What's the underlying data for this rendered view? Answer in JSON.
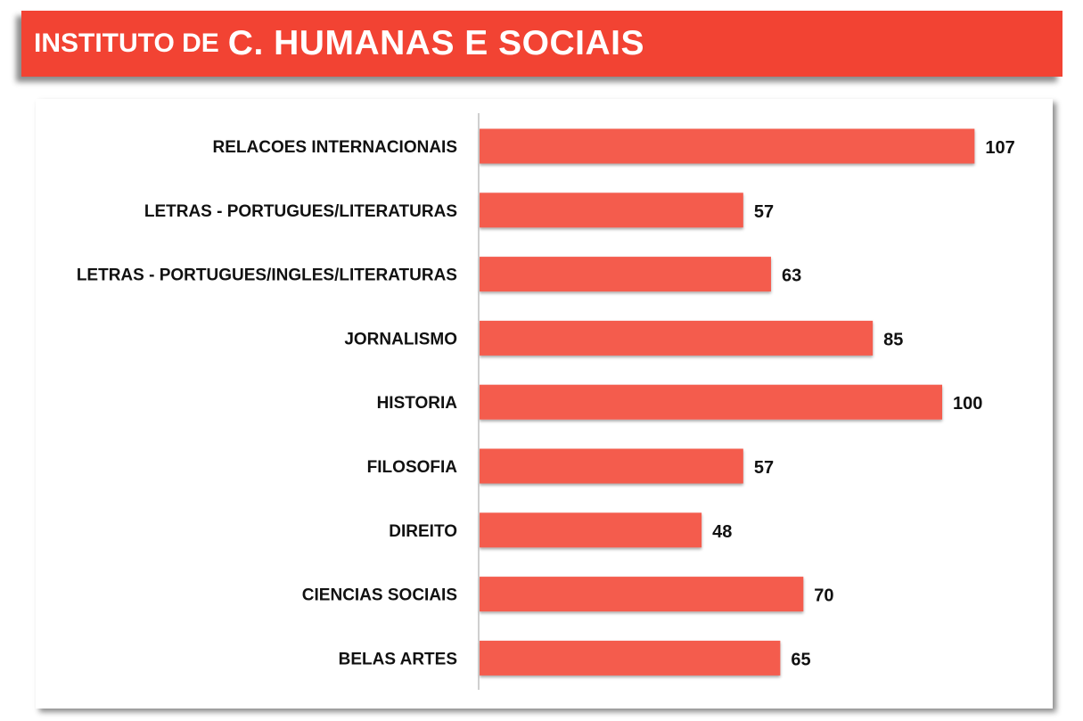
{
  "title": {
    "prefix": "INSTITUTO DE",
    "main": "C. HUMANAS E SOCIAIS"
  },
  "colors": {
    "banner": "#f24333",
    "bar": "#f45b4e",
    "axis": "#bfbfbf"
  },
  "chart_data": {
    "type": "bar",
    "orientation": "horizontal",
    "categories": [
      "RELACOES INTERNACIONAIS",
      "LETRAS - PORTUGUES/LITERATURAS",
      "LETRAS - PORTUGUES/INGLES/LITERATURAS",
      "JORNALISMO",
      "HISTORIA",
      "FILOSOFIA",
      "DIREITO",
      "CIENCIAS SOCIAIS",
      "BELAS ARTES"
    ],
    "values": [
      107,
      57,
      63,
      85,
      100,
      57,
      48,
      70,
      65
    ],
    "xlim": [
      0,
      120
    ],
    "grid": false,
    "legend": "none",
    "data_labels": true
  }
}
